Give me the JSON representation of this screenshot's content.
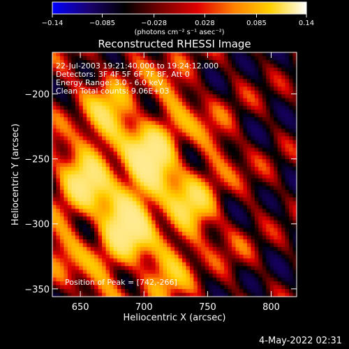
{
  "chart_data": {
    "type": "heatmap",
    "title": "Reconstructed RHESSI Image",
    "xlabel": "Heliocentric X (arcsec)",
    "ylabel": "Heliocentric Y (arcsec)",
    "xlim": [
      628,
      820
    ],
    "ylim": [
      -356,
      -168
    ],
    "x_ticks": [
      650,
      700,
      750,
      800
    ],
    "x_tick_labels": [
      "650",
      "700",
      "750",
      "800"
    ],
    "y_ticks": [
      -200,
      -250,
      -300,
      -350
    ],
    "y_tick_labels": [
      "−200",
      "−250",
      "−300",
      "−350"
    ],
    "colorbar": {
      "min": -0.14,
      "max": 0.14,
      "ticks": [
        -0.14,
        -0.085,
        -0.028,
        0.028,
        0.085,
        0.14
      ],
      "tick_labels": [
        "−0.14",
        "−0.085",
        "−0.028",
        "0.028",
        "0.085",
        "0.14"
      ],
      "units_label": "(photons cm⁻² s⁻¹ asec⁻²)"
    },
    "colormap": [
      "#0000ff",
      "#1a0070",
      "#000000",
      "#7a0000",
      "#e00000",
      "#ff8000",
      "#ffd000",
      "#ffffff"
    ],
    "annotations": [
      "22-Jul-2003 19:21:40.000 to 19:24:12.000",
      "Detectors: 3F 4F 5F 6F 7F 8F, Att 0",
      "Energy Range: 3.0 - 6.0 keV",
      "Clean    Total counts: 9.06E+03"
    ],
    "peak_label": "Position of Peak = [742,-266]",
    "peak": [
      742,
      -266
    ],
    "grid": false
  },
  "timestamp": "4-May-2022 02:31"
}
